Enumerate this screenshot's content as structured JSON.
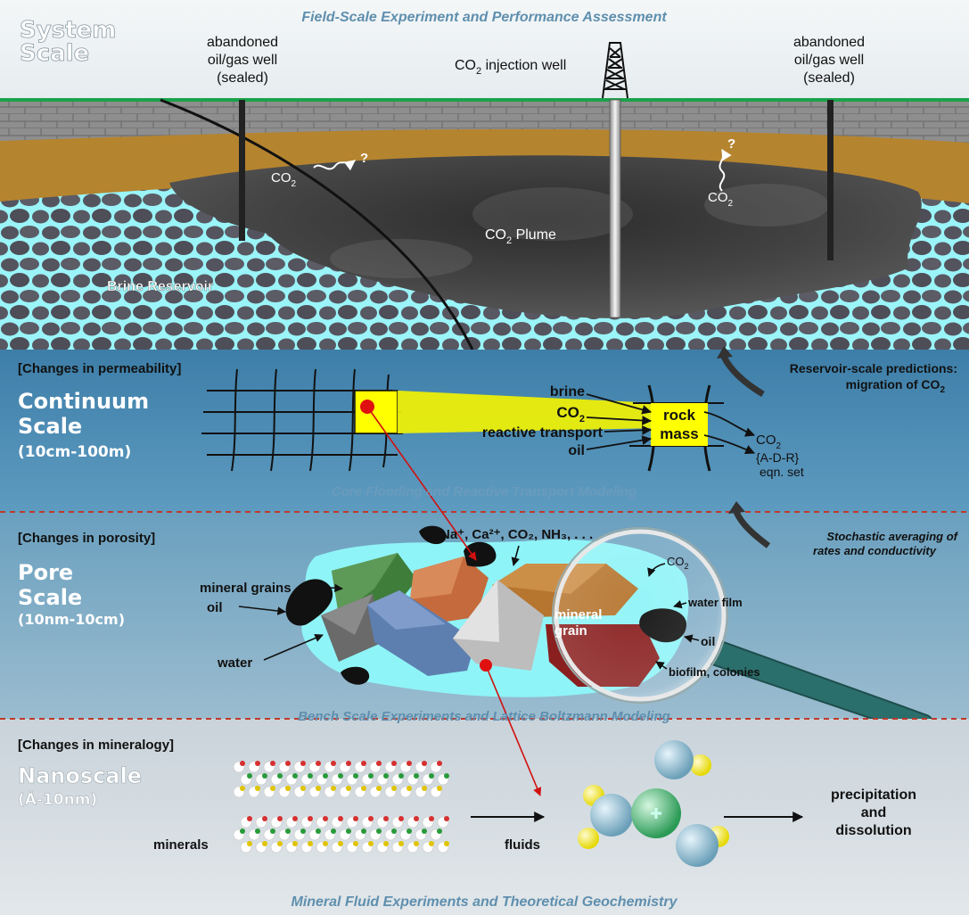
{
  "system": {
    "title_line1": "System",
    "title_line2": "Scale",
    "banner": "Field-Scale Experiment and Performance Assessment",
    "left_well": [
      "abandoned",
      "oil/gas well",
      "(sealed)"
    ],
    "right_well": [
      "abandoned",
      "oil/gas well",
      "(sealed)"
    ],
    "injection_well": {
      "prefix": "CO",
      "sub": "2",
      "suffix": " injection well"
    },
    "leak_left": {
      "co": "CO",
      "sub": "2",
      "q": "?"
    },
    "leak_right": {
      "co": "CO",
      "sub": "2",
      "q": "?"
    },
    "plume": {
      "prefix": "CO",
      "sub": "2",
      "suffix": " Plume"
    },
    "brine_reservoir": "Brine Reservoir"
  },
  "continuum": {
    "change": "[Changes in permeability]",
    "title": "Continuum",
    "title2": "Scale",
    "range": "(10cm-100m)",
    "inputs": {
      "brine": "brine",
      "co2": "CO",
      "co2_sub": "2",
      "reactive": "reactive transport",
      "oil": "oil"
    },
    "rock_mass": [
      "rock",
      "mass"
    ],
    "outputs": {
      "co2": "CO",
      "co2_sub": "2",
      "adr1": "{A-D-R}",
      "adr2": "eqn. set"
    },
    "prediction": {
      "line1": "Reservoir-scale predictions:",
      "line2": "migration of CO",
      "sub": "2"
    },
    "banner": "Core Flooding and Reactive Transport Modeling"
  },
  "pore": {
    "change": "[Changes in porosity]",
    "title": "Pore",
    "title2": "Scale",
    "range": "(10nm-10cm)",
    "ions": "Na⁺, Ca²⁺, CO₂, NH₃, . . .",
    "labels": {
      "mineral_grains": "mineral grains",
      "oil": "oil",
      "water": "water",
      "co2": "CO",
      "co2_sub": "2",
      "water_film": "water film",
      "oil2": "oil",
      "mineral_grain": [
        "mineral",
        "grain"
      ],
      "biofilm": "biofilm, colonies"
    },
    "stochastic": [
      "Stochastic averaging of",
      "rates and conductivity"
    ],
    "banner": "Bench Scale Experiments and Lattice Boltzmann Modeling"
  },
  "nano": {
    "change": "[Changes in mineralogy]",
    "title": "Nanoscale",
    "range": "(Å-10nm)",
    "minerals": "minerals",
    "fluids": "fluids",
    "result": [
      "precipitation",
      "and",
      "dissolution"
    ],
    "banner": "Mineral Fluid Experiments and Theoretical Geochemistry"
  },
  "colors": {
    "sky": "#eef2f4",
    "ground_line": "#1aa24a",
    "brick": "#8c8c8c",
    "sand": "#b5842f",
    "cobble": "#555561",
    "brine": "#8ff0f5",
    "plume": "#3a3a3a",
    "continuum_bg": "#4d8fb5",
    "pore_bg": "#6fa2be",
    "nano_bg": "#d6dde2",
    "highlight": "#ffff00",
    "marker": "#e01010",
    "divider": "#c0392b"
  }
}
